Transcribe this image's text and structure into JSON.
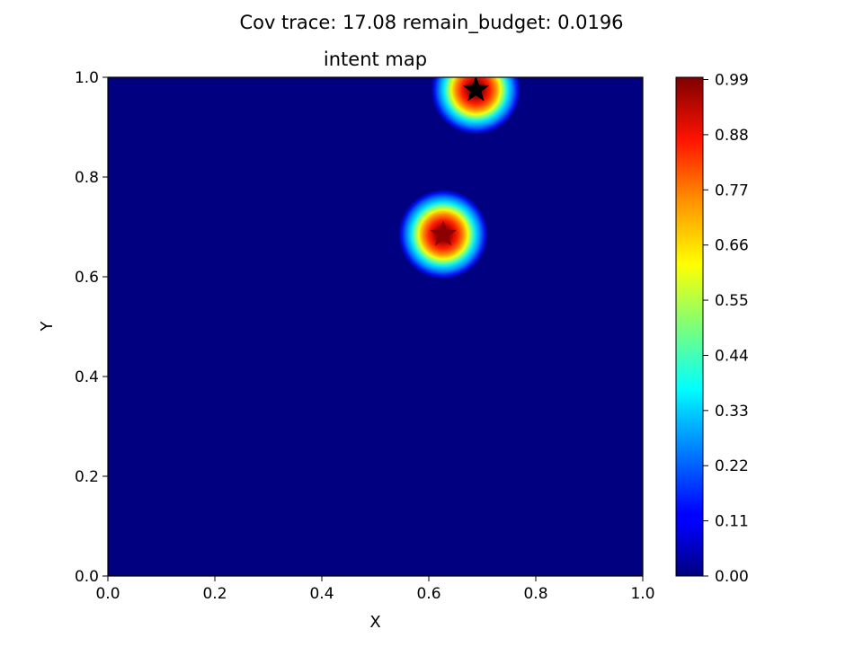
{
  "figure": {
    "suptitle": "Cov trace: 17.08  remain_budget: 0.0196"
  },
  "chart_data": {
    "type": "heatmap",
    "title": "intent map",
    "xlabel": "X",
    "ylabel": "Y",
    "xlim": [
      0.0,
      1.0
    ],
    "ylim": [
      0.0,
      1.0
    ],
    "x_ticks": [
      "0.0",
      "0.2",
      "0.4",
      "0.6",
      "0.8",
      "1.0"
    ],
    "y_ticks": [
      "0.0",
      "0.2",
      "0.4",
      "0.6",
      "0.8",
      "1.0"
    ],
    "colormap": "jet",
    "grid": false,
    "colorbar": {
      "range": [
        0.0,
        0.99
      ],
      "ticks": [
        "0.00",
        "0.11",
        "0.22",
        "0.33",
        "0.44",
        "0.55",
        "0.66",
        "0.77",
        "0.88",
        "0.99"
      ]
    },
    "peaks": [
      {
        "x": 0.627,
        "y": 0.685,
        "value": 0.99,
        "marker": "star",
        "marker_color": "#8b0000"
      },
      {
        "x": 0.688,
        "y": 0.975,
        "value": 0.99,
        "marker": "star",
        "marker_color": "#000000"
      }
    ]
  }
}
